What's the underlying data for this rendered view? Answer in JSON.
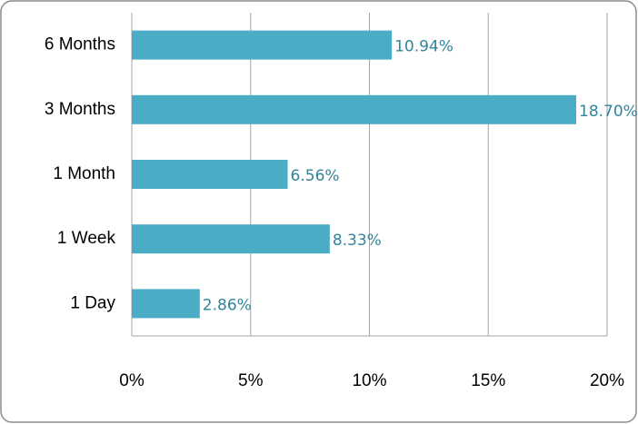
{
  "chart_data": {
    "type": "bar",
    "orientation": "horizontal",
    "categories": [
      "6 Months",
      "3 Months",
      "1 Month",
      "1 Week",
      "1 Day"
    ],
    "values": [
      10.94,
      18.7,
      6.56,
      8.33,
      2.86
    ],
    "value_labels": [
      "10.94%",
      "18.70%",
      "6.56%",
      "8.33%",
      "2.86%"
    ],
    "color": "#4bacc6",
    "xlim": [
      0,
      20
    ],
    "xticks": [
      {
        "value": 0,
        "label": "0%"
      },
      {
        "value": 5,
        "label": "5%"
      },
      {
        "value": 10,
        "label": "10%"
      },
      {
        "value": 15,
        "label": "15%"
      },
      {
        "value": 20,
        "label": "20%"
      }
    ],
    "grid": true
  }
}
